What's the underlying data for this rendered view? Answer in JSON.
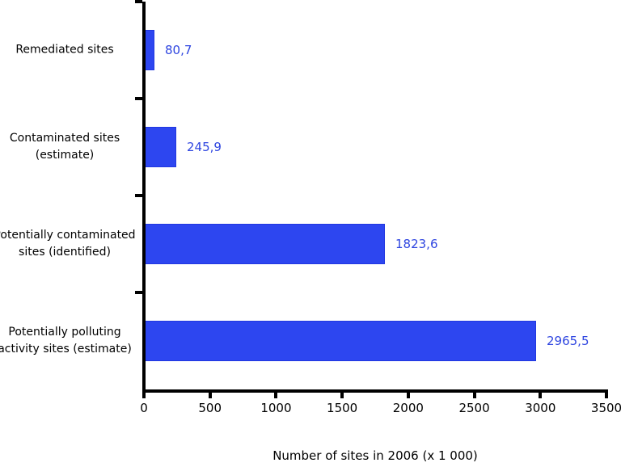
{
  "chart_data": {
    "type": "bar",
    "orientation": "horizontal",
    "xlabel": "Number of sites in 2006 (x 1 000)",
    "xlim": [
      0,
      3500
    ],
    "xticks": [
      0,
      500,
      1000,
      1500,
      2000,
      2500,
      3000,
      3500
    ],
    "xtick_labels": [
      "0",
      "500",
      "1000",
      "1500",
      "2000",
      "2500",
      "3000",
      "3500"
    ],
    "grid": "off",
    "legend": "none",
    "categories": [
      "Remediated sites",
      "Contaminated sites (estimate)",
      "Potentially contaminated sites (identified)",
      "Potentially polluting activity sites (estimate)"
    ],
    "category_lines": [
      [
        "Remediated sites"
      ],
      [
        "Contaminated sites",
        "(estimate)"
      ],
      [
        "Potentially contaminated",
        "sites (identified)"
      ],
      [
        "Potentially polluting",
        "activity sites (estimate)"
      ]
    ],
    "values": [
      80.7,
      245.9,
      1823.6,
      2965.5
    ],
    "value_labels": [
      "80,7",
      "245,9",
      "1823,6",
      "2965,5"
    ],
    "colors": {
      "bar_fill": "#2d46f0",
      "bar_border": "#2238e0",
      "value_label": "#2e45e0",
      "axis": "#000000",
      "text": "#000000"
    }
  }
}
